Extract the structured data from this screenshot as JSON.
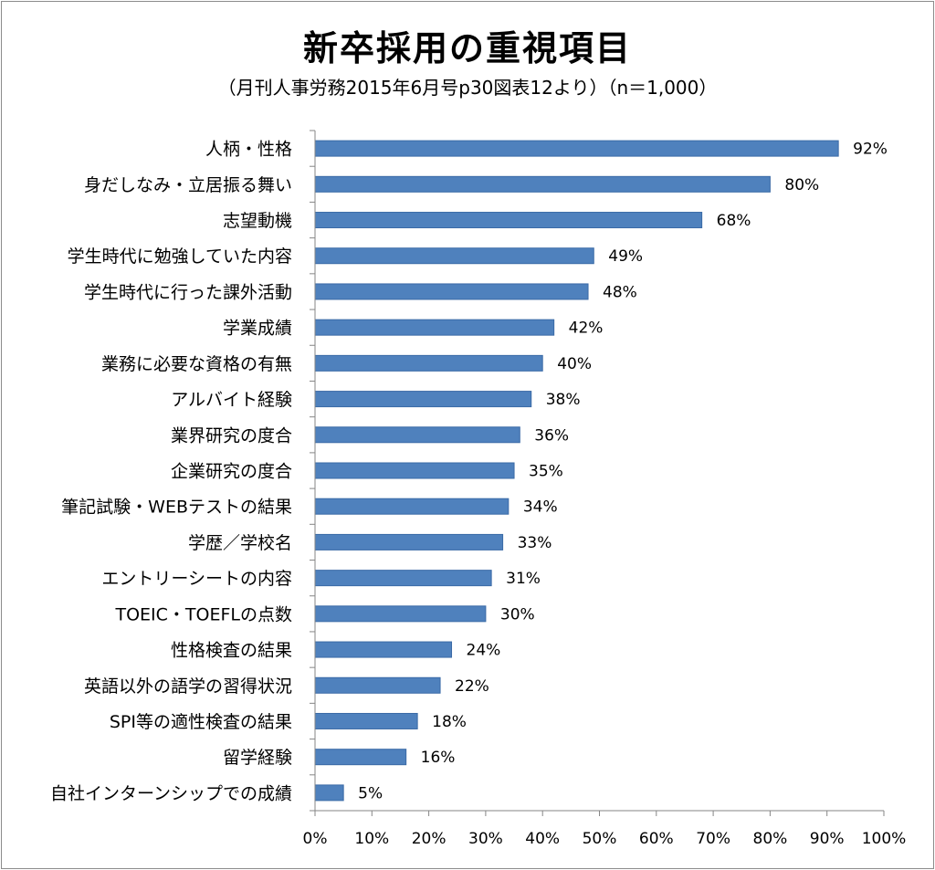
{
  "chart_data": {
    "type": "bar",
    "orientation": "horizontal",
    "title": "新卒採用の重視項目",
    "subtitle": "（月刊人事労務2015年6月号p30図表12より）（n＝1,000）",
    "categories": [
      "人柄・性格",
      "身だしなみ・立居振る舞い",
      "志望動機",
      "学生時代に勉強していた内容",
      "学生時代に行った課外活動",
      "学業成績",
      "業務に必要な資格の有無",
      "アルバイト経験",
      "業界研究の度合",
      "企業研究の度合",
      "筆記試験・WEBテストの結果",
      "学歴／学校名",
      "エントリーシートの内容",
      "TOEIC・TOEFLの点数",
      "性格検査の結果",
      "英語以外の語学の習得状況",
      "SPI等の適性検査の結果",
      "留学経験",
      "自社インターンシップでの成績"
    ],
    "values": [
      92,
      80,
      68,
      49,
      48,
      42,
      40,
      38,
      36,
      35,
      34,
      33,
      31,
      30,
      24,
      22,
      18,
      16,
      5
    ],
    "value_labels": [
      "92%",
      "80%",
      "68%",
      "49%",
      "48%",
      "42%",
      "40%",
      "38%",
      "36%",
      "35%",
      "34%",
      "33%",
      "31%",
      "30%",
      "24%",
      "22%",
      "18%",
      "16%",
      "5%"
    ],
    "x_ticks": [
      "0%",
      "10%",
      "20%",
      "30%",
      "40%",
      "50%",
      "60%",
      "70%",
      "80%",
      "90%",
      "100%"
    ],
    "xlim": [
      0,
      100
    ],
    "grid": false,
    "legend": "none",
    "bar_color": "#4f81bd",
    "bar_border_color": "#3a6aa6"
  }
}
